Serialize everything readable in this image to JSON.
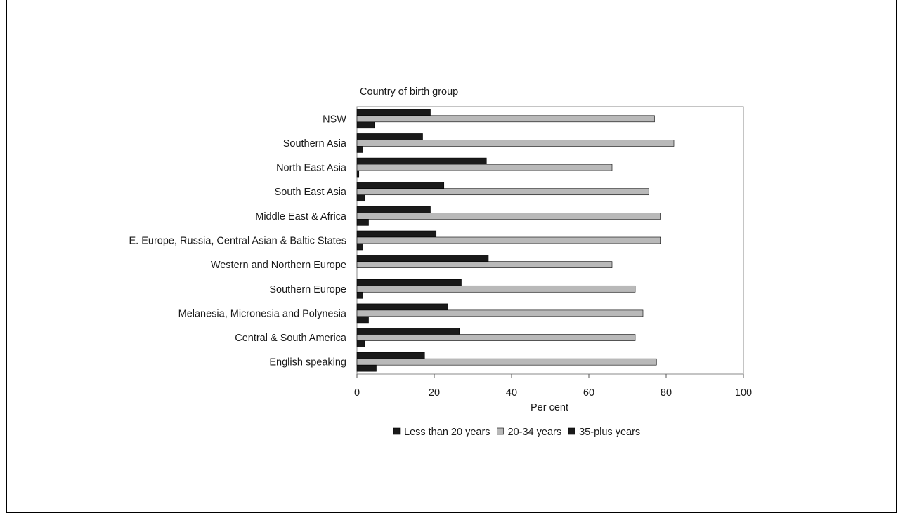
{
  "chart_data": {
    "type": "bar",
    "orientation": "horizontal",
    "title": "Country of birth group",
    "xlabel": "Per cent",
    "xlim": [
      0,
      100
    ],
    "xticks": [
      "0",
      "20",
      "40",
      "60",
      "80",
      "100"
    ],
    "categories": [
      "NSW",
      "Southern Asia",
      "North East Asia",
      "South East Asia",
      "Middle East & Africa",
      "E. Europe, Russia, Central Asian & Baltic States",
      "Western and Northern Europe",
      "Southern Europe",
      "Melanesia, Micronesia and Polynesia",
      "Central & South America",
      "English speaking"
    ],
    "series": [
      {
        "name": "Less than 20 years",
        "color": "#1a1a1a",
        "values": [
          19,
          17,
          33.5,
          22.5,
          19,
          20.5,
          34,
          27,
          23.5,
          26.5,
          17.5
        ]
      },
      {
        "name": "20-34 years",
        "color": "#b9b9b9",
        "values": [
          77,
          82,
          66,
          75.5,
          78.5,
          78.5,
          66,
          72,
          74,
          72,
          77.5
        ]
      },
      {
        "name": "35-plus years",
        "color": "#1a1a1a",
        "values": [
          4.5,
          1.5,
          0.5,
          2,
          3,
          1.5,
          0,
          1.5,
          3,
          2,
          5
        ]
      }
    ],
    "legend_position": "bottom",
    "grid": false
  }
}
